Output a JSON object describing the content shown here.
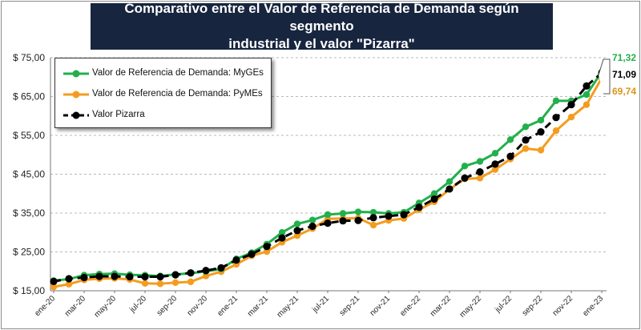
{
  "title_line1": "Comparativo entre el Valor de Referencia de Demanda según segmento",
  "title_line2": "industrial y el valor \"Pizarra\"",
  "chart_data": {
    "type": "line",
    "x": [
      "ene-20",
      "feb-20",
      "mar-20",
      "abr-20",
      "may-20",
      "jun-20",
      "jul-20",
      "ago-20",
      "sep-20",
      "oct-20",
      "nov-20",
      "dic-20",
      "ene-21",
      "feb-21",
      "mar-21",
      "abr-21",
      "may-21",
      "jun-21",
      "jul-21",
      "ago-21",
      "sep-21",
      "oct-21",
      "nov-21",
      "dic-21",
      "ene-22",
      "feb-22",
      "mar-22",
      "abr-22",
      "may-22",
      "jun-22",
      "jul-22",
      "ago-22",
      "sep-22",
      "oct-22",
      "nov-22",
      "dic-22",
      "ene-23"
    ],
    "x_tick_labels": [
      "ene-20",
      "mar-20",
      "may-20",
      "jul-20",
      "sep-20",
      "nov-20",
      "ene-21",
      "mar-21",
      "may-21",
      "jul-21",
      "sep-21",
      "nov-21",
      "ene-22",
      "mar-22",
      "may-22",
      "jul-22",
      "sep-22",
      "nov-22",
      "ene-23"
    ],
    "y_tick_labels": [
      "$ 15,00",
      "$ 25,00",
      "$ 35,00",
      "$ 45,00",
      "$ 55,00",
      "$ 65,00",
      "$ 75,00"
    ],
    "ylim": [
      15,
      75
    ],
    "grid": true,
    "legend_position": "top-left",
    "series": [
      {
        "name": "Valor de Referencia de Demanda: MyGEs",
        "color": "#21b04b",
        "style": "solid",
        "values": [
          17.6,
          18.0,
          19.0,
          19.3,
          19.4,
          19.1,
          19.0,
          18.8,
          19.2,
          19.5,
          20.0,
          20.6,
          23.2,
          24.8,
          27.0,
          30.0,
          32.2,
          33.2,
          34.6,
          34.9,
          35.3,
          35.2,
          34.9,
          35.2,
          37.6,
          40.0,
          43.1,
          47.1,
          48.3,
          50.4,
          53.9,
          57.2,
          58.9,
          63.9,
          63.9,
          65.5,
          71.32
        ]
      },
      {
        "name": "Valor de Referencia de Demanda: PyMEs",
        "color": "#f49c1f",
        "style": "solid",
        "values": [
          16.0,
          16.7,
          17.8,
          18.1,
          18.2,
          17.9,
          16.9,
          16.8,
          17.1,
          17.3,
          18.8,
          19.9,
          21.8,
          24.0,
          25.1,
          27.5,
          29.2,
          31.0,
          33.5,
          33.6,
          33.7,
          31.9,
          33.1,
          33.6,
          35.9,
          37.9,
          41.1,
          43.8,
          44.0,
          46.2,
          48.9,
          51.6,
          51.2,
          56.2,
          59.7,
          62.9,
          69.74
        ]
      },
      {
        "name": "Valor Pizarra",
        "color": "#000000",
        "style": "dashed",
        "values": [
          17.4,
          18.1,
          18.4,
          18.7,
          18.7,
          18.6,
          18.6,
          18.6,
          19.1,
          19.6,
          20.2,
          20.9,
          22.9,
          24.4,
          26.4,
          28.6,
          30.5,
          31.6,
          32.4,
          33.0,
          33.1,
          33.8,
          34.2,
          34.6,
          36.5,
          38.6,
          41.2,
          44.0,
          45.6,
          47.6,
          49.6,
          53.8,
          55.9,
          59.6,
          62.9,
          67.7,
          71.09
        ]
      }
    ],
    "end_labels": [
      {
        "text": "71,32",
        "color": "#21b04b"
      },
      {
        "text": "71,09",
        "color": "#000000"
      },
      {
        "text": "69,74",
        "color": "#d9961a"
      }
    ]
  }
}
